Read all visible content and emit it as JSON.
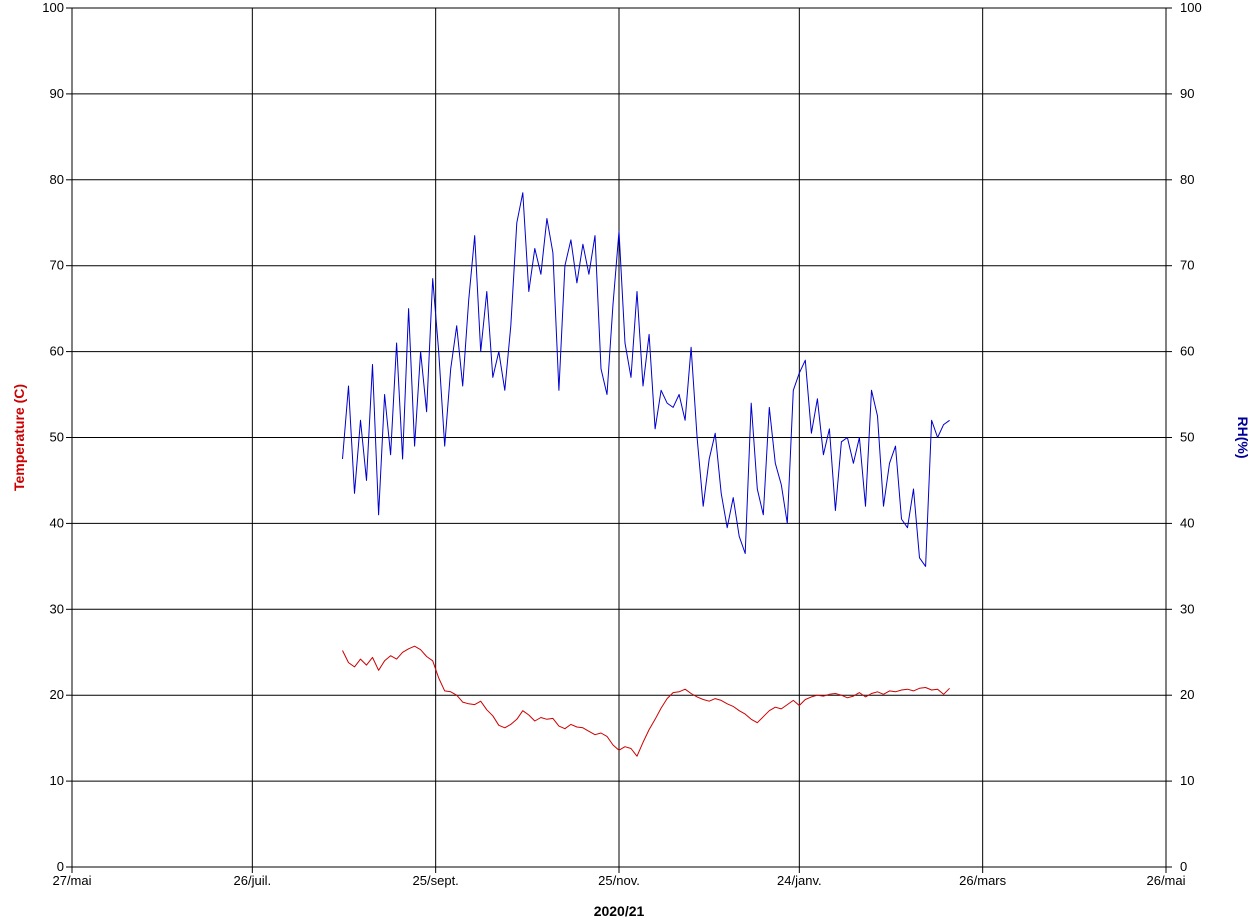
{
  "chart_data": {
    "type": "line",
    "title": "",
    "xlabel": "2020/21",
    "ylabel_left": "Temperature (C)",
    "ylabel_right": "RH(%)",
    "ylim": [
      0,
      100
    ],
    "yticks": [
      0,
      10,
      20,
      30,
      40,
      50,
      60,
      70,
      80,
      90,
      100
    ],
    "x_range": [
      "2020-05-27",
      "2021-05-26"
    ],
    "xticks": [
      {
        "date": "2020-05-27",
        "label": "27/mai"
      },
      {
        "date": "2020-07-26",
        "label": "26/juil."
      },
      {
        "date": "2020-09-25",
        "label": "25/sept."
      },
      {
        "date": "2020-11-25",
        "label": "25/nov."
      },
      {
        "date": "2021-01-24",
        "label": "24/janv."
      },
      {
        "date": "2021-03-26",
        "label": "26/mars"
      },
      {
        "date": "2021-05-26",
        "label": "26/mai"
      }
    ],
    "grid": true,
    "legend": "none",
    "colors": {
      "temperature": "#cc0000",
      "rh": "#0000cc",
      "grid": "#000000",
      "left_title": "#cc0000",
      "right_title": "#000099"
    },
    "series": [
      {
        "axis": "left",
        "color": "#cc0000",
        "x": [
          "2020-08-25",
          "2020-08-27",
          "2020-08-29",
          "2020-08-31",
          "2020-09-02",
          "2020-09-04",
          "2020-09-06",
          "2020-09-08",
          "2020-09-10",
          "2020-09-12",
          "2020-09-14",
          "2020-09-16",
          "2020-09-18",
          "2020-09-20",
          "2020-09-22",
          "2020-09-24",
          "2020-09-26",
          "2020-09-28",
          "2020-09-30",
          "2020-10-02",
          "2020-10-04",
          "2020-10-06",
          "2020-10-08",
          "2020-10-10",
          "2020-10-12",
          "2020-10-14",
          "2020-10-16",
          "2020-10-18",
          "2020-10-20",
          "2020-10-22",
          "2020-10-24",
          "2020-10-26",
          "2020-10-28",
          "2020-10-30",
          "2020-11-01",
          "2020-11-03",
          "2020-11-05",
          "2020-11-07",
          "2020-11-09",
          "2020-11-11",
          "2020-11-13",
          "2020-11-15",
          "2020-11-17",
          "2020-11-19",
          "2020-11-21",
          "2020-11-23",
          "2020-11-25",
          "2020-11-27",
          "2020-11-29",
          "2020-12-01",
          "2020-12-03",
          "2020-12-05",
          "2020-12-07",
          "2020-12-09",
          "2020-12-11",
          "2020-12-13",
          "2020-12-15",
          "2020-12-17",
          "2020-12-19",
          "2020-12-21",
          "2020-12-23",
          "2020-12-25",
          "2020-12-27",
          "2020-12-29",
          "2020-12-31",
          "2021-01-02",
          "2021-01-04",
          "2021-01-06",
          "2021-01-08",
          "2021-01-10",
          "2021-01-12",
          "2021-01-14",
          "2021-01-16",
          "2021-01-18",
          "2021-01-20",
          "2021-01-22",
          "2021-01-24",
          "2021-01-26",
          "2021-01-28",
          "2021-01-30",
          "2021-02-01",
          "2021-02-03",
          "2021-02-05",
          "2021-02-07",
          "2021-02-09",
          "2021-02-11",
          "2021-02-13",
          "2021-02-15",
          "2021-02-17",
          "2021-02-19",
          "2021-02-21",
          "2021-02-23",
          "2021-02-25",
          "2021-02-27",
          "2021-03-01",
          "2021-03-03",
          "2021-03-05",
          "2021-03-07",
          "2021-03-09",
          "2021-03-11",
          "2021-03-13",
          "2021-03-15"
        ],
        "values": [
          25.2,
          23.8,
          23.3,
          24.2,
          23.5,
          24.4,
          22.9,
          24.0,
          24.6,
          24.2,
          25.0,
          25.4,
          25.7,
          25.3,
          24.5,
          24.0,
          22.0,
          20.5,
          20.4,
          20.0,
          19.2,
          19.0,
          18.9,
          19.3,
          18.3,
          17.6,
          16.5,
          16.2,
          16.6,
          17.2,
          18.2,
          17.7,
          17.0,
          17.4,
          17.2,
          17.3,
          16.4,
          16.1,
          16.6,
          16.3,
          16.2,
          15.8,
          15.4,
          15.6,
          15.2,
          14.2,
          13.6,
          14.0,
          13.8,
          12.9,
          14.5,
          16.0,
          17.2,
          18.5,
          19.6,
          20.3,
          20.4,
          20.7,
          20.2,
          19.8,
          19.5,
          19.3,
          19.6,
          19.4,
          19.0,
          18.7,
          18.2,
          17.8,
          17.2,
          16.8,
          17.5,
          18.2,
          18.6,
          18.4,
          18.9,
          19.4,
          18.8,
          19.5,
          19.8,
          20.0,
          19.9,
          20.1,
          20.2,
          20.0,
          19.7,
          19.9,
          20.3,
          19.8,
          20.2,
          20.4,
          20.1,
          20.5,
          20.4,
          20.6,
          20.7,
          20.5,
          20.8,
          20.9,
          20.6,
          20.7,
          20.1,
          20.8
        ]
      },
      {
        "axis": "right",
        "color": "#0000cc",
        "x": [
          "2020-08-25",
          "2020-08-27",
          "2020-08-29",
          "2020-08-31",
          "2020-09-02",
          "2020-09-04",
          "2020-09-06",
          "2020-09-08",
          "2020-09-10",
          "2020-09-12",
          "2020-09-14",
          "2020-09-16",
          "2020-09-18",
          "2020-09-20",
          "2020-09-22",
          "2020-09-24",
          "2020-09-26",
          "2020-09-28",
          "2020-09-30",
          "2020-10-02",
          "2020-10-04",
          "2020-10-06",
          "2020-10-08",
          "2020-10-10",
          "2020-10-12",
          "2020-10-14",
          "2020-10-16",
          "2020-10-18",
          "2020-10-20",
          "2020-10-22",
          "2020-10-24",
          "2020-10-26",
          "2020-10-28",
          "2020-10-30",
          "2020-11-01",
          "2020-11-03",
          "2020-11-05",
          "2020-11-07",
          "2020-11-09",
          "2020-11-11",
          "2020-11-13",
          "2020-11-15",
          "2020-11-17",
          "2020-11-19",
          "2020-11-21",
          "2020-11-23",
          "2020-11-25",
          "2020-11-27",
          "2020-11-29",
          "2020-12-01",
          "2020-12-03",
          "2020-12-05",
          "2020-12-07",
          "2020-12-09",
          "2020-12-11",
          "2020-12-13",
          "2020-12-15",
          "2020-12-17",
          "2020-12-19",
          "2020-12-21",
          "2020-12-23",
          "2020-12-25",
          "2020-12-27",
          "2020-12-29",
          "2020-12-31",
          "2021-01-02",
          "2021-01-04",
          "2021-01-06",
          "2021-01-08",
          "2021-01-10",
          "2021-01-12",
          "2021-01-14",
          "2021-01-16",
          "2021-01-18",
          "2021-01-20",
          "2021-01-22",
          "2021-01-24",
          "2021-01-26",
          "2021-01-28",
          "2021-01-30",
          "2021-02-01",
          "2021-02-03",
          "2021-02-05",
          "2021-02-07",
          "2021-02-09",
          "2021-02-11",
          "2021-02-13",
          "2021-02-15",
          "2021-02-17",
          "2021-02-19",
          "2021-02-21",
          "2021-02-23",
          "2021-02-25",
          "2021-02-27",
          "2021-03-01",
          "2021-03-03",
          "2021-03-05",
          "2021-03-07",
          "2021-03-09",
          "2021-03-11",
          "2021-03-13",
          "2021-03-15"
        ],
        "values": [
          47.5,
          56.0,
          43.5,
          52.0,
          45.0,
          58.5,
          41.0,
          55.0,
          48.0,
          61.0,
          47.5,
          65.0,
          49.0,
          60.0,
          53.0,
          68.5,
          60.0,
          49.0,
          58.0,
          63.0,
          56.0,
          66.0,
          73.5,
          60.0,
          67.0,
          57.0,
          60.0,
          55.5,
          63.0,
          75.0,
          78.5,
          67.0,
          72.0,
          69.0,
          75.5,
          71.5,
          55.5,
          70.0,
          73.0,
          68.0,
          72.5,
          69.0,
          73.5,
          58.0,
          55.0,
          65.5,
          74.0,
          61.0,
          57.0,
          67.0,
          56.0,
          62.0,
          51.0,
          55.5,
          54.0,
          53.5,
          55.0,
          52.0,
          60.5,
          50.0,
          42.0,
          47.5,
          50.5,
          43.5,
          39.5,
          43.0,
          38.5,
          36.5,
          54.0,
          44.0,
          41.0,
          53.5,
          47.0,
          44.5,
          40.0,
          55.5,
          57.5,
          59.0,
          50.5,
          54.5,
          48.0,
          51.0,
          41.5,
          49.5,
          50.0,
          47.0,
          50.0,
          42.0,
          55.5,
          52.5,
          42.0,
          47.0,
          49.0,
          40.5,
          39.5,
          44.0,
          36.0,
          35.0,
          52.0,
          50.0,
          51.5,
          52.0
        ]
      }
    ]
  }
}
